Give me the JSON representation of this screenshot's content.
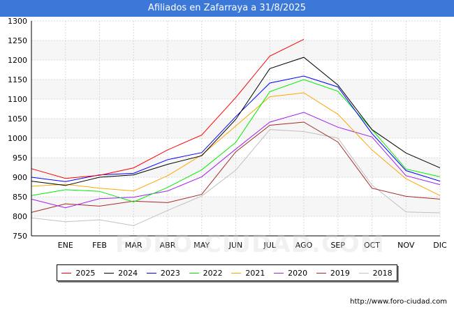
{
  "header": {
    "title": "Afiliados en Zafarraya a 31/8/2025"
  },
  "watermark": "FORO-CIUDAD.COM",
  "footer": {
    "url": "http://www.foro-ciudad.com"
  },
  "chart_data": {
    "type": "line",
    "title": "Afiliados en Zafarraya a 31/8/2025",
    "categories": [
      "",
      "ENE",
      "FEB",
      "MAR",
      "ABR",
      "MAY",
      "JUN",
      "JUL",
      "AGO",
      "SEP",
      "OCT",
      "NOV",
      "DIC"
    ],
    "ylim": [
      750,
      1300
    ],
    "yticks": [
      750,
      800,
      850,
      900,
      950,
      1000,
      1050,
      1100,
      1150,
      1200,
      1250,
      1300
    ],
    "grid": true,
    "legend_position": "bottom",
    "series": [
      {
        "name": "2025",
        "color": "#ff0000",
        "values": [
          922,
          897,
          905,
          924,
          970,
          1008,
          1104,
          1210,
          1253,
          null,
          null,
          null,
          null
        ]
      },
      {
        "name": "2024",
        "color": "#000000",
        "values": [
          890,
          879,
          900,
          906,
          933,
          955,
          1048,
          1178,
          1207,
          1136,
          1022,
          962,
          924
        ]
      },
      {
        "name": "2023",
        "color": "#0000ff",
        "values": [
          900,
          889,
          906,
          910,
          945,
          963,
          1055,
          1141,
          1159,
          1131,
          1012,
          917,
          890
        ]
      },
      {
        "name": "2022",
        "color": "#00ee00",
        "values": [
          853,
          868,
          864,
          837,
          874,
          919,
          989,
          1119,
          1150,
          1120,
          1022,
          921,
          901
        ]
      },
      {
        "name": "2021",
        "color": "#ffa500",
        "values": [
          877,
          882,
          872,
          865,
          904,
          957,
          1031,
          1106,
          1116,
          1061,
          970,
          896,
          853
        ]
      },
      {
        "name": "2020",
        "color": "#a020f0",
        "values": [
          844,
          822,
          845,
          849,
          865,
          901,
          972,
          1041,
          1066,
          1028,
          1003,
          904,
          881
        ]
      },
      {
        "name": "2019",
        "color": "#a52a2a",
        "values": [
          810,
          832,
          826,
          839,
          835,
          856,
          965,
          1033,
          1041,
          990,
          872,
          851,
          844
        ]
      },
      {
        "name": "2018",
        "color": "#c0c0c0",
        "values": [
          796,
          786,
          791,
          776,
          815,
          852,
          918,
          1022,
          1017,
          1000,
          880,
          811,
          809
        ]
      }
    ]
  }
}
